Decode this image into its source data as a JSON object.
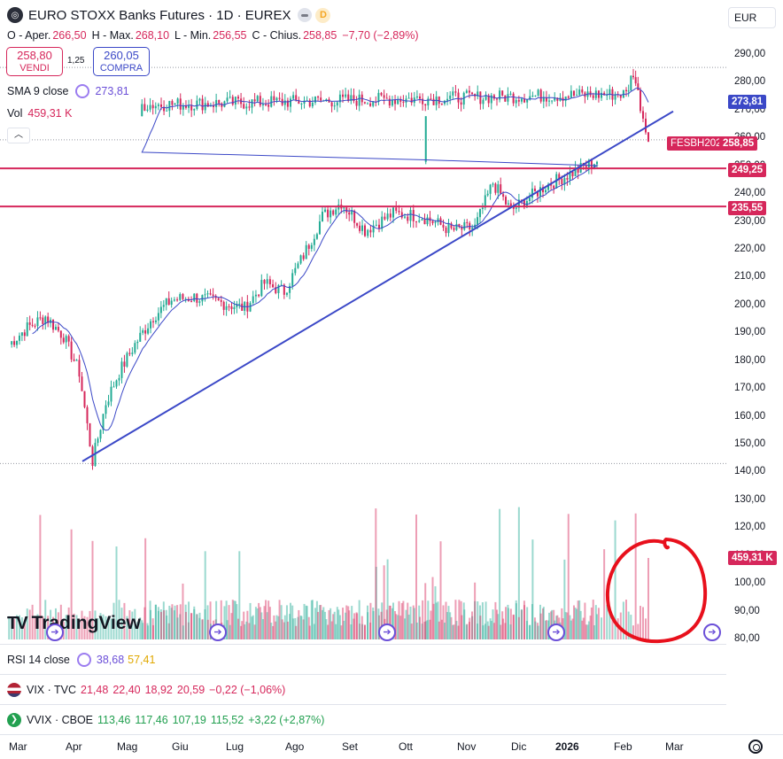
{
  "header": {
    "symbol_title": "EURO STOXX Banks Futures · 1D · EUREX",
    "badge": "D",
    "currency": "EUR"
  },
  "ohlc": {
    "open_label": "O - Aper.",
    "open": "266,50",
    "high_label": "H - Max.",
    "high": "268,10",
    "low_label": "L - Min.",
    "low": "256,55",
    "close_label": "C - Chius.",
    "close": "258,85",
    "change": "−7,70 (−2,89%)"
  },
  "trade": {
    "sell_price": "258,80",
    "sell_label": "VENDI",
    "spread": "1,25",
    "buy_price": "260,05",
    "buy_label": "COMPRA"
  },
  "indicators": {
    "sma_label": "SMA 9 close",
    "sma_value": "273,81",
    "vol_label": "Vol",
    "vol_value": "459,31 K",
    "rsi_label": "RSI 14 close",
    "rsi_value": "38,68",
    "rsi_ma": "57,41"
  },
  "comparisons": {
    "vix": {
      "label": "VIX · TVC",
      "o": "21,48",
      "h": "22,40",
      "l": "18,92",
      "c": "20,59",
      "change": "−0,22 (−1,06%)"
    },
    "vvix": {
      "label": "VVIX · CBOE",
      "o": "113,46",
      "h": "117,46",
      "l": "107,19",
      "c": "115,52",
      "change": "+3,22 (+2,87%)"
    }
  },
  "price_tags": {
    "sma": "273,81",
    "last_symbol": "FESBH2026",
    "last": "258,85",
    "level1": "249,25",
    "level2": "235,55",
    "volume": "459,31 K"
  },
  "y_axis": [
    "290,00",
    "280,00",
    "270,00",
    "260,00",
    "250,00",
    "240,00",
    "230,00",
    "220,00",
    "210,00",
    "200,00",
    "190,00",
    "180,00",
    "170,00",
    "160,00",
    "150,00",
    "140,00",
    "130,00",
    "120,00",
    "110,00",
    "100,00",
    "90,00",
    "80,00"
  ],
  "x_axis": [
    "Mar",
    "Apr",
    "Mag",
    "Giu",
    "Lug",
    "Ago",
    "Set",
    "Ott",
    "Nov",
    "Dic",
    "2026",
    "Feb",
    "Mar"
  ],
  "branding": {
    "logo_text": "TradingView"
  },
  "colors": {
    "up": "#22ab94",
    "down": "#d6275b",
    "sma": "#3b48c7",
    "trendline": "#3b48c7",
    "annotation": "#e8101c"
  },
  "chart_data": {
    "type": "candlestick",
    "title": "EURO STOXX Banks Futures · 1D · EUREX",
    "ylim": [
      140,
      290
    ],
    "close_path": [
      {
        "m": "Mar",
        "v": 186
      },
      {
        "m": "Mar",
        "v": 192
      },
      {
        "m": "Mar",
        "v": 196
      },
      {
        "m": "Mar",
        "v": 189
      },
      {
        "m": "Apr",
        "v": 176
      },
      {
        "m": "Apr",
        "v": 144
      },
      {
        "m": "Apr",
        "v": 165
      },
      {
        "m": "Apr",
        "v": 176
      },
      {
        "m": "Mag",
        "v": 186
      },
      {
        "m": "Mag",
        "v": 196
      },
      {
        "m": "Mag",
        "v": 202
      },
      {
        "m": "Giu",
        "v": 203
      },
      {
        "m": "Giu",
        "v": 201
      },
      {
        "m": "Lug",
        "v": 199
      },
      {
        "m": "Lug",
        "v": 208
      },
      {
        "m": "Lug",
        "v": 205
      },
      {
        "m": "Ago",
        "v": 218
      },
      {
        "m": "Ago",
        "v": 232
      },
      {
        "m": "Ago",
        "v": 237
      },
      {
        "m": "Set",
        "v": 227
      },
      {
        "m": "Set",
        "v": 233
      },
      {
        "m": "Ott",
        "v": 232
      },
      {
        "m": "Ott",
        "v": 227
      },
      {
        "m": "Nov",
        "v": 228
      },
      {
        "m": "Nov",
        "v": 244
      },
      {
        "m": "Nov",
        "v": 234
      },
      {
        "m": "Dic",
        "v": 243
      },
      {
        "m": "Dic",
        "v": 252
      },
      {
        "m": "2026",
        "v": 266
      },
      {
        "m": "2026",
        "v": 272
      },
      {
        "m": "Feb",
        "v": 276
      },
      {
        "m": "Feb",
        "v": 284
      },
      {
        "m": "Feb",
        "v": 272
      },
      {
        "m": "Feb",
        "v": 258.85
      }
    ],
    "horizontal_levels": [
      249.25,
      235.55
    ],
    "trendline": [
      {
        "date": "Apr",
        "value": 144
      },
      {
        "date": "Feb",
        "value": 264
      }
    ],
    "sma_last": 273.81,
    "volume_last": "459,31 K"
  }
}
